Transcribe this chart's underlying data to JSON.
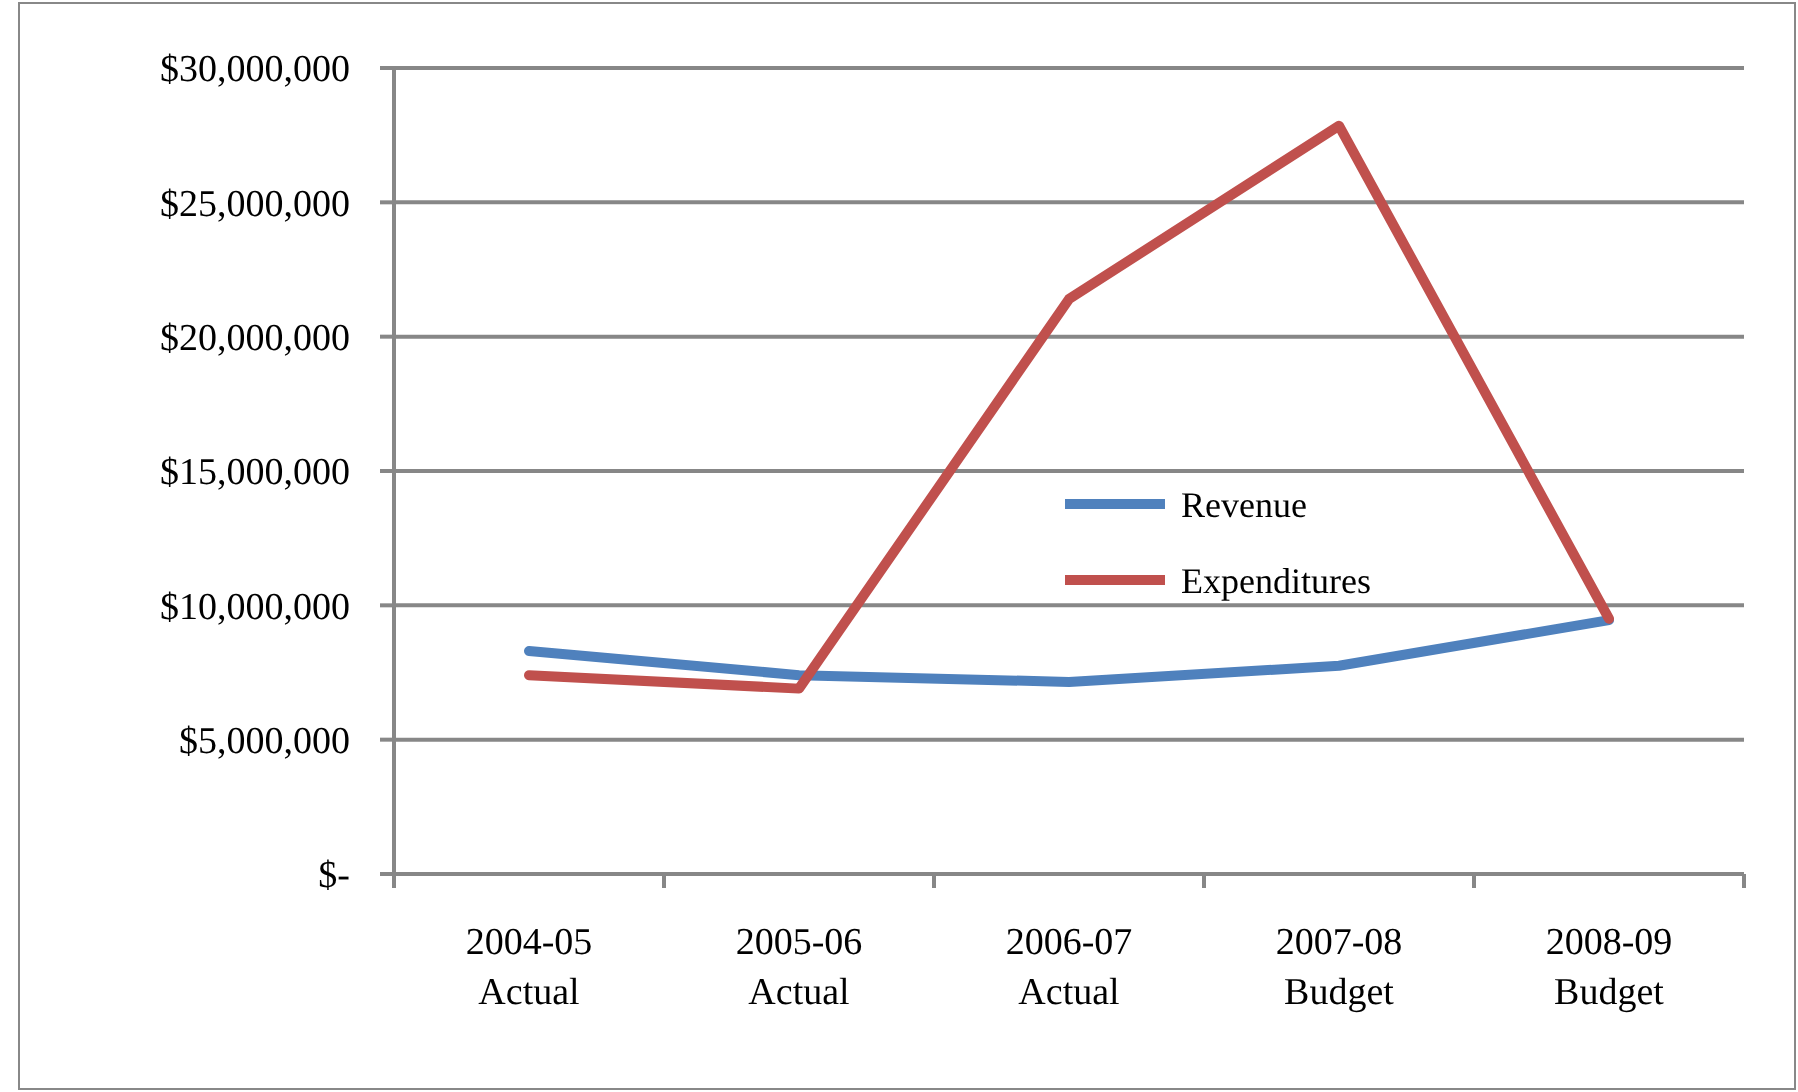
{
  "chart_data": {
    "type": "line",
    "categories": [
      "2004-05\nActual",
      "2005-06\nActual",
      "2006-07\nActual",
      "2007-08\nBudget",
      "2008-09\nBudget"
    ],
    "series": [
      {
        "name": "Revenue",
        "color": "#4f81bd",
        "values": [
          8300000,
          7400000,
          7150000,
          7750000,
          9450000
        ]
      },
      {
        "name": "Expenditures",
        "color": "#c0504d",
        "values": [
          7400000,
          6900000,
          21400000,
          27850000,
          9500000
        ]
      }
    ],
    "ylim": [
      0,
      30000000
    ],
    "yticks": [
      {
        "value": 0,
        "label": "$-"
      },
      {
        "value": 5000000,
        "label": "$5,000,000"
      },
      {
        "value": 10000000,
        "label": "$10,000,000"
      },
      {
        "value": 15000000,
        "label": "$15,000,000"
      },
      {
        "value": 20000000,
        "label": "$20,000,000"
      },
      {
        "value": 25000000,
        "label": "$25,000,000"
      },
      {
        "value": 30000000,
        "label": "$30,000,000"
      }
    ],
    "grid": "y",
    "legend": "right",
    "marker": "none",
    "line_style": "solid"
  }
}
